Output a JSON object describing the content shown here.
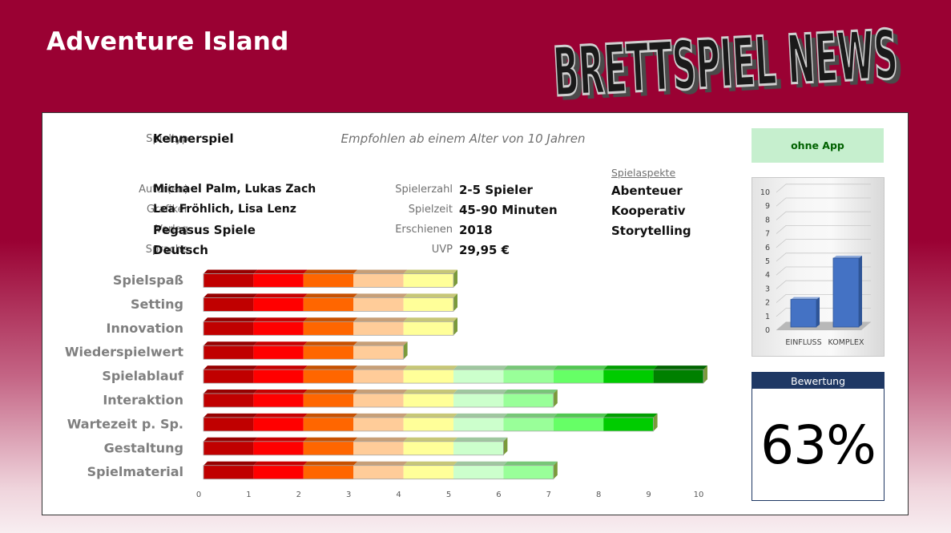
{
  "game": {
    "title": "Adventure Island"
  },
  "logo": {
    "text": "BRETTSPIEL NEWS"
  },
  "info": {
    "spieltyp_label": "Spieltyp",
    "spieltyp": "Kennerspiel",
    "age_note": "Empfohlen ab einem Alter von 10 Jahren",
    "autor_label": "Autor(en)",
    "autor": "Michael Palm, Lukas Zach",
    "grafiker_label": "Grafiker",
    "grafiker": "Lea Fröhlich, Lisa Lenz",
    "verlag_label": "Verlag",
    "verlag": "Pegasus Spiele",
    "sprache_label": "Sprache",
    "sprache": "Deutsch",
    "spielerzahl_label": "Spielerzahl",
    "spielerzahl": "2-5 Spieler",
    "spielzeit_label": "Spielzeit",
    "spielzeit": "45-90 Minuten",
    "erschienen_label": "Erschienen",
    "erschienen": "2018",
    "uvp_label": "UVP",
    "uvp": "29,95 €"
  },
  "aspects": {
    "label": "Spielaspekte",
    "items": [
      "Abenteuer",
      "Kooperativ",
      "Storytelling"
    ]
  },
  "app_badge": {
    "label": "ohne App",
    "bg": "#c6efce",
    "color": "#006100"
  },
  "rating": {
    "label": "Bewertung",
    "value": "63%"
  },
  "chart_data": [
    {
      "type": "bar",
      "orientation": "horizontal",
      "categories": [
        "Spielspaß",
        "Setting",
        "Innovation",
        "Wiederspielwert",
        "Spielablauf",
        "Interaktion",
        "Wartezeit p. Sp.",
        "Gestaltung",
        "Spielmaterial"
      ],
      "values": [
        5,
        5,
        5,
        4,
        10,
        7,
        9,
        6,
        7
      ],
      "xlim": [
        0,
        10
      ],
      "xticks": [
        "0",
        "1",
        "2",
        "3",
        "4",
        "5",
        "6",
        "7",
        "8",
        "9",
        "10"
      ],
      "segment_colors": [
        "#c00000",
        "#ff0000",
        "#ff6600",
        "#ffcc99",
        "#ffff99",
        "#ccffcc",
        "#99ff99",
        "#66ff66",
        "#00cc00",
        "#008000"
      ],
      "grid": false,
      "legend": "none"
    },
    {
      "type": "bar",
      "categories": [
        "EINFLUSS",
        "KOMPLEX"
      ],
      "values": [
        2,
        5
      ],
      "ylim": [
        0,
        10
      ],
      "yticks": [
        "0",
        "1",
        "2",
        "3",
        "4",
        "5",
        "6",
        "7",
        "8",
        "9",
        "10"
      ],
      "bar_color": "#4472c4",
      "grid": true,
      "legend": "none"
    }
  ]
}
